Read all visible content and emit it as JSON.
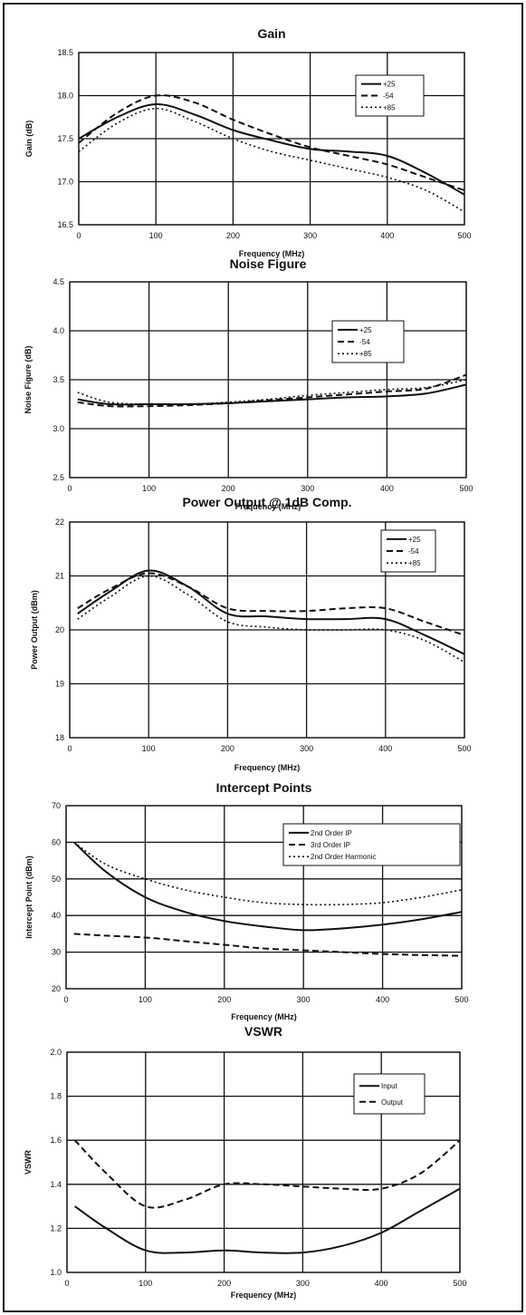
{
  "chart_data": [
    {
      "type": "line",
      "title": "Gain",
      "xlabel": "Frequency (MHz)",
      "ylabel": "Gain (dB)",
      "xlim": [
        0,
        500
      ],
      "ylim": [
        16.5,
        18.5
      ],
      "xticks": [
        "0",
        "100",
        "200",
        "300",
        "400",
        "500"
      ],
      "yticks": [
        "16.5",
        "17.0",
        "17.5",
        "18.0",
        "18.5"
      ],
      "grid": true,
      "legend_position": "top-right",
      "series": [
        {
          "name": "+25",
          "x": [
            0,
            50,
            100,
            150,
            200,
            250,
            300,
            350,
            400,
            450,
            500
          ],
          "values": [
            17.5,
            17.75,
            17.9,
            17.78,
            17.6,
            17.48,
            17.38,
            17.35,
            17.3,
            17.1,
            16.85
          ]
        },
        {
          "name": "-54",
          "x": [
            0,
            50,
            100,
            150,
            200,
            250,
            300,
            350,
            400,
            450,
            500
          ],
          "values": [
            17.45,
            17.8,
            18.0,
            17.92,
            17.72,
            17.55,
            17.4,
            17.3,
            17.2,
            17.05,
            16.9
          ]
        },
        {
          "name": "+85",
          "x": [
            0,
            50,
            100,
            150,
            200,
            250,
            300,
            350,
            400,
            450,
            500
          ],
          "values": [
            17.35,
            17.68,
            17.85,
            17.7,
            17.5,
            17.35,
            17.25,
            17.15,
            17.05,
            16.9,
            16.65
          ]
        }
      ]
    },
    {
      "type": "line",
      "title": "Noise Figure",
      "xlabel": "Frequency (MHz)",
      "ylabel": "Noise Figure (dB)",
      "xlim": [
        0,
        500
      ],
      "ylim": [
        2.5,
        4.5
      ],
      "xticks": [
        "0",
        "100",
        "200",
        "300",
        "400",
        "500"
      ],
      "yticks": [
        "2.5",
        "3.0",
        "3.5",
        "4.0",
        "4.5"
      ],
      "grid": true,
      "legend_position": "top-right",
      "series": [
        {
          "name": "+25",
          "x": [
            10,
            50,
            100,
            150,
            200,
            250,
            300,
            350,
            400,
            450,
            500
          ],
          "values": [
            3.3,
            3.25,
            3.25,
            3.25,
            3.26,
            3.28,
            3.3,
            3.32,
            3.33,
            3.36,
            3.45
          ]
        },
        {
          "name": "-54",
          "x": [
            10,
            50,
            100,
            150,
            200,
            250,
            300,
            350,
            400,
            450,
            500
          ],
          "values": [
            3.27,
            3.23,
            3.23,
            3.24,
            3.26,
            3.29,
            3.32,
            3.35,
            3.38,
            3.41,
            3.55
          ]
        },
        {
          "name": "+85",
          "x": [
            10,
            50,
            100,
            150,
            200,
            250,
            300,
            350,
            400,
            450,
            500
          ],
          "values": [
            3.37,
            3.27,
            3.25,
            3.25,
            3.27,
            3.3,
            3.34,
            3.37,
            3.4,
            3.42,
            3.5
          ]
        }
      ]
    },
    {
      "type": "line",
      "title": "Power Output @ 1dB Comp.",
      "xlabel": "Frequency (MHz)",
      "ylabel": "Power Output (dBm)",
      "xlim": [
        0,
        500
      ],
      "ylim": [
        18,
        22
      ],
      "xticks": [
        "0",
        "100",
        "200",
        "300",
        "400",
        "500"
      ],
      "yticks": [
        "18",
        "19",
        "20",
        "21",
        "22"
      ],
      "grid": true,
      "legend_position": "top-right",
      "series": [
        {
          "name": "+25",
          "x": [
            10,
            50,
            100,
            150,
            200,
            250,
            300,
            350,
            400,
            450,
            500
          ],
          "values": [
            20.3,
            20.7,
            21.1,
            20.8,
            20.3,
            20.25,
            20.2,
            20.2,
            20.2,
            19.9,
            19.55
          ]
        },
        {
          "name": "-54",
          "x": [
            10,
            50,
            100,
            150,
            200,
            250,
            300,
            350,
            400,
            450,
            500
          ],
          "values": [
            20.4,
            20.75,
            21.05,
            20.8,
            20.4,
            20.35,
            20.35,
            20.4,
            20.4,
            20.15,
            19.9
          ]
        },
        {
          "name": "+85",
          "x": [
            10,
            50,
            100,
            150,
            200,
            250,
            300,
            350,
            400,
            450,
            500
          ],
          "values": [
            20.2,
            20.6,
            21.0,
            20.65,
            20.15,
            20.05,
            20.0,
            20.0,
            20.0,
            19.8,
            19.4
          ]
        }
      ]
    },
    {
      "type": "line",
      "title": "Intercept Points",
      "xlabel": "Frequency (MHz)",
      "ylabel": "Intercept Point (dBm)",
      "xlim": [
        0,
        500
      ],
      "ylim": [
        20,
        70
      ],
      "xticks": [
        "0",
        "100",
        "200",
        "300",
        "400",
        "500"
      ],
      "yticks": [
        "20",
        "30",
        "40",
        "50",
        "60",
        "70"
      ],
      "grid": true,
      "legend_position": "top-right",
      "series": [
        {
          "name": "2nd Order IP",
          "x": [
            10,
            50,
            100,
            150,
            200,
            250,
            300,
            350,
            400,
            450,
            500
          ],
          "values": [
            60,
            52,
            45,
            41,
            38.5,
            37,
            36,
            36.5,
            37.5,
            39,
            41
          ]
        },
        {
          "name": "3rd Order IP",
          "x": [
            10,
            50,
            100,
            150,
            200,
            250,
            300,
            350,
            400,
            450,
            500
          ],
          "values": [
            35,
            34.5,
            34,
            33,
            32,
            31,
            30.5,
            30,
            29.5,
            29.2,
            29
          ]
        },
        {
          "name": "2nd Order Harmonic",
          "x": [
            10,
            50,
            100,
            150,
            200,
            250,
            300,
            350,
            400,
            450,
            500
          ],
          "values": [
            60,
            54,
            50,
            47,
            45,
            43.5,
            43,
            43,
            43.5,
            45,
            47
          ]
        }
      ]
    },
    {
      "type": "line",
      "title": "VSWR",
      "xlabel": "Frequency (MHz)",
      "ylabel": "VSWR",
      "xlim": [
        0,
        500
      ],
      "ylim": [
        1.0,
        2.0
      ],
      "xticks": [
        "0",
        "100",
        "200",
        "300",
        "400",
        "500"
      ],
      "yticks": [
        "1.0",
        "1.2",
        "1.4",
        "1.6",
        "1.8",
        "2.0"
      ],
      "grid": true,
      "legend_position": "top-right",
      "series": [
        {
          "name": "Input",
          "x": [
            10,
            50,
            100,
            150,
            200,
            250,
            300,
            350,
            400,
            450,
            500
          ],
          "values": [
            1.3,
            1.2,
            1.1,
            1.09,
            1.1,
            1.09,
            1.09,
            1.12,
            1.18,
            1.28,
            1.38
          ]
        },
        {
          "name": "Output",
          "x": [
            10,
            50,
            100,
            150,
            200,
            250,
            300,
            350,
            400,
            450,
            500
          ],
          "values": [
            1.6,
            1.45,
            1.3,
            1.33,
            1.4,
            1.4,
            1.39,
            1.38,
            1.38,
            1.45,
            1.6
          ]
        }
      ]
    }
  ],
  "colors": {
    "line": "#111111",
    "grid": "#111111",
    "frame": "#111111",
    "background": "#ffffff"
  }
}
